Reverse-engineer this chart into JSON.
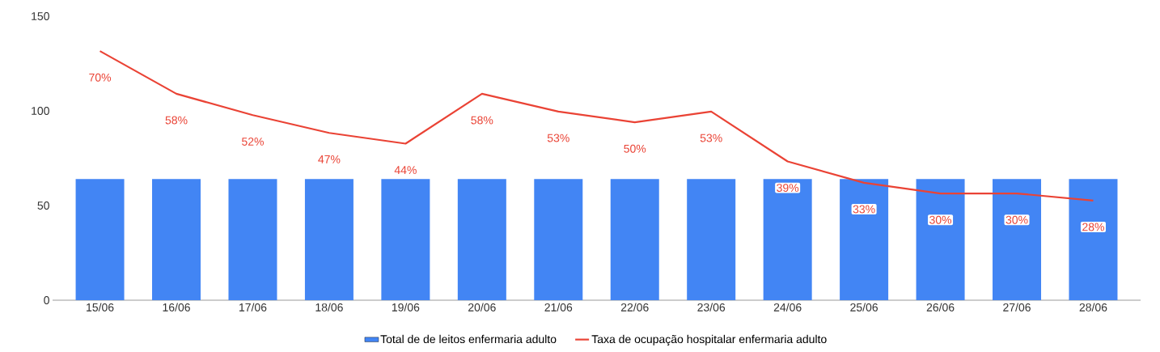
{
  "chart_data": {
    "type": "bar",
    "categories": [
      "15/06",
      "16/06",
      "17/06",
      "18/06",
      "19/06",
      "20/06",
      "21/06",
      "22/06",
      "23/06",
      "24/06",
      "25/06",
      "26/06",
      "27/06",
      "28/06"
    ],
    "series": [
      {
        "name": "Total de de leitos enfermaria adulto",
        "color": "#4285f4",
        "values": [
          64,
          64,
          64,
          64,
          64,
          64,
          64,
          64,
          64,
          64,
          64,
          64,
          64,
          64
        ]
      },
      {
        "name": "Taxa de ocupação hospitalar enfermaria adulto",
        "type": "line",
        "axis": "y2",
        "color": "#ea4335",
        "values": [
          70,
          58,
          52,
          47,
          44,
          58,
          53,
          50,
          53,
          39,
          33,
          30,
          30,
          28
        ],
        "value_labels": [
          "70%",
          "58%",
          "52%",
          "47%",
          "44%",
          "58%",
          "53%",
          "50%",
          "53%",
          "39%",
          "33%",
          "30%",
          "30%",
          "28%"
        ]
      }
    ],
    "ylim": [
      0,
      150
    ],
    "yticks": [
      0,
      50,
      100,
      150
    ],
    "legend": "bottom"
  }
}
